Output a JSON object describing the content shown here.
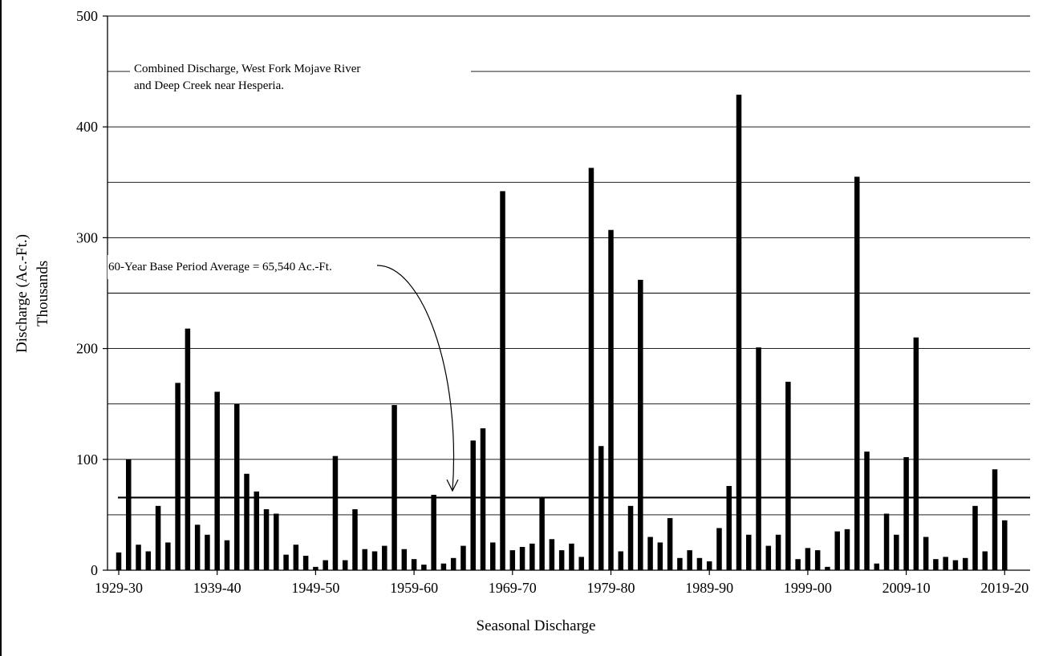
{
  "chart_data": {
    "type": "bar",
    "title": "",
    "xlabel": "Seasonal Discharge",
    "ylabel_line1": "Discharge (Ac.-Ft.)",
    "ylabel_line2": "Thousands",
    "ylim": [
      0,
      500
    ],
    "y_ticks": [
      0,
      100,
      200,
      300,
      400,
      500
    ],
    "y_gridlines": [
      50,
      100,
      150,
      200,
      250,
      300,
      350,
      400,
      450
    ],
    "grid": true,
    "bar_color": "#000000",
    "x_tick_labels": [
      "1929-30",
      "1939-40",
      "1949-50",
      "1959-60",
      "1969-70",
      "1979-80",
      "1989-90",
      "1999-00",
      "2009-10",
      "2019-20"
    ],
    "first_season_start_year": 1929,
    "average_line": {
      "value": 65.54,
      "label": "60-Year Base Period Average = 65,540 Ac.-Ft."
    },
    "annotation": {
      "line1": "Combined Discharge, West Fork Mojave River",
      "line2": "and Deep Creek near Hesperia."
    },
    "categories": [
      "1929-30",
      "1930-31",
      "1931-32",
      "1932-33",
      "1933-34",
      "1934-35",
      "1935-36",
      "1936-37",
      "1937-38",
      "1938-39",
      "1939-40",
      "1940-41",
      "1941-42",
      "1942-43",
      "1943-44",
      "1944-45",
      "1945-46",
      "1946-47",
      "1947-48",
      "1948-49",
      "1949-50",
      "1950-51",
      "1951-52",
      "1952-53",
      "1953-54",
      "1954-55",
      "1955-56",
      "1956-57",
      "1957-58",
      "1958-59",
      "1959-60",
      "1960-61",
      "1961-62",
      "1962-63",
      "1963-64",
      "1964-65",
      "1965-66",
      "1966-67",
      "1967-68",
      "1968-69",
      "1969-70",
      "1970-71",
      "1971-72",
      "1972-73",
      "1973-74",
      "1974-75",
      "1975-76",
      "1976-77",
      "1977-78",
      "1978-79",
      "1979-80",
      "1980-81",
      "1981-82",
      "1982-83",
      "1983-84",
      "1984-85",
      "1985-86",
      "1986-87",
      "1987-88",
      "1988-89",
      "1989-90",
      "1990-91",
      "1991-92",
      "1992-93",
      "1993-94",
      "1994-95",
      "1995-96",
      "1996-97",
      "1997-98",
      "1998-99",
      "1999-00",
      "2000-01",
      "2001-02",
      "2002-03",
      "2003-04",
      "2004-05",
      "2005-06",
      "2006-07",
      "2007-08",
      "2008-09",
      "2009-10",
      "2010-11",
      "2011-12",
      "2012-13",
      "2013-14",
      "2014-15",
      "2015-16",
      "2016-17",
      "2017-18",
      "2018-19",
      "2019-20"
    ],
    "values": [
      16,
      100,
      23,
      17,
      58,
      25,
      169,
      218,
      41,
      32,
      161,
      27,
      150,
      87,
      71,
      55,
      51,
      14,
      23,
      13,
      3,
      9,
      103,
      9,
      55,
      19,
      17,
      22,
      149,
      19,
      10,
      5,
      68,
      6,
      11,
      22,
      117,
      128,
      25,
      342,
      18,
      21,
      24,
      66,
      28,
      18,
      24,
      12,
      363,
      112,
      307,
      17,
      58,
      262,
      30,
      25,
      47,
      11,
      18,
      11,
      8,
      38,
      76,
      429,
      32,
      201,
      22,
      32,
      170,
      10,
      20,
      18,
      3,
      35,
      37,
      355,
      107,
      6,
      51,
      32,
      102,
      210,
      30,
      10,
      12,
      9,
      11,
      58,
      17,
      91,
      45
    ]
  }
}
